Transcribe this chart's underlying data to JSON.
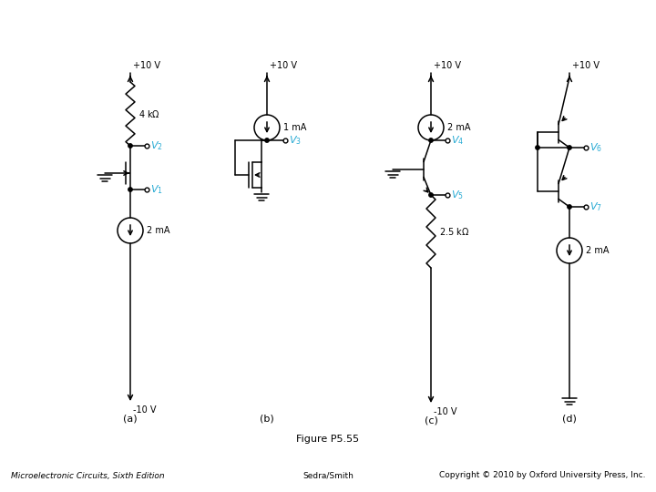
{
  "title": "Figure P5.55",
  "bottom_left": "Microelectronic Circuits, Sixth Edition",
  "bottom_center": "Sedra/Smith",
  "bottom_right": "Copyright © 2010 by Oxford University Press, Inc.",
  "label_color": "#29ABD4",
  "bg_color": "#FFFFFF",
  "fig_width": 7.2,
  "fig_height": 5.4,
  "dpi": 100,
  "lw": 1.1
}
